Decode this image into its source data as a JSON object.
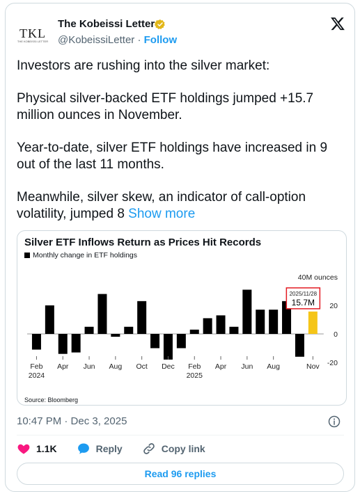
{
  "author": {
    "name": "The Kobeissi Letter",
    "handle": "@KobeissiLetter",
    "separator": "·",
    "follow_label": "Follow",
    "avatar_text": "TKL",
    "avatar_subtext": "THE KOBEISSI LETTER"
  },
  "tweet": {
    "paragraphs": [
      "Investors are rushing into the silver market:",
      "Physical silver-backed ETF holdings jumped +15.7 million ounces in November.",
      "Year-to-date, silver ETF holdings have increased in 9 out of the last 11 months.",
      "Meanwhile, silver skew, an indicator of call-option volatility, jumped 8"
    ],
    "show_more": "Show more"
  },
  "chart": {
    "title": "Silver ETF Inflows Return as Prices Hit Records",
    "legend": "Monthly change in ETF holdings",
    "source": "Source: Bloomberg",
    "callout_date": "2025/11/28",
    "callout_value": "15.7M"
  },
  "chart_data": {
    "type": "bar",
    "title": "Silver ETF Inflows Return as Prices Hit Records",
    "subtitle": "Monthly change in ETF holdings",
    "ylabel": "40M ounces",
    "ylim": [
      -20,
      40
    ],
    "yticks": [
      -20,
      0,
      20
    ],
    "ytick_labels": [
      "-20",
      "0",
      "20"
    ],
    "x_tick_labels": [
      {
        "label": "Feb",
        "sub": "2024",
        "index": 0
      },
      {
        "label": "Apr",
        "sub": "",
        "index": 2
      },
      {
        "label": "Jun",
        "sub": "",
        "index": 4
      },
      {
        "label": "Aug",
        "sub": "",
        "index": 6
      },
      {
        "label": "Oct",
        "sub": "",
        "index": 8
      },
      {
        "label": "Dec",
        "sub": "",
        "index": 10
      },
      {
        "label": "Feb",
        "sub": "2025",
        "index": 12
      },
      {
        "label": "Apr",
        "sub": "",
        "index": 14
      },
      {
        "label": "Jun",
        "sub": "",
        "index": 16
      },
      {
        "label": "Aug",
        "sub": "",
        "index": 18
      },
      {
        "label": "Nov",
        "sub": "",
        "index": 21
      }
    ],
    "categories": [
      "2024-02",
      "2024-03",
      "2024-04",
      "2024-05",
      "2024-06",
      "2024-07",
      "2024-08",
      "2024-09",
      "2024-10",
      "2024-11",
      "2024-12",
      "2025-01",
      "2025-02",
      "2025-03",
      "2025-04",
      "2025-05",
      "2025-06",
      "2025-07",
      "2025-08",
      "2025-09",
      "2025-10",
      "2025-11"
    ],
    "values": [
      -11,
      20,
      -14,
      -13,
      5,
      28,
      -2,
      5,
      23,
      -10,
      -18,
      -10,
      3,
      11,
      13,
      5,
      31,
      17,
      17,
      23,
      -16,
      15.7
    ],
    "colors": {
      "default": "#000000",
      "highlight": "#f5c518",
      "callout_border": "#e31b23"
    },
    "highlight_index": 21,
    "grid": false
  }
}
